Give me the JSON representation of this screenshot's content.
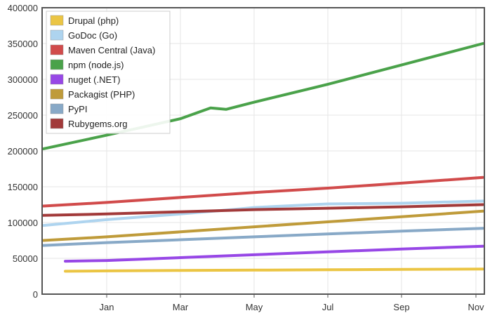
{
  "chart_data": {
    "type": "line",
    "title": "",
    "xlabel": "",
    "ylabel": "",
    "ylim": [
      0,
      400000
    ],
    "y_ticks": [
      0,
      50000,
      100000,
      150000,
      200000,
      250000,
      300000,
      350000,
      400000
    ],
    "y_tick_labels": [
      "0",
      "50000",
      "100000",
      "150000",
      "200000",
      "250000",
      "300000",
      "350000",
      "400000"
    ],
    "x_ticks": [
      "Jan",
      "Mar",
      "May",
      "Jul",
      "Sep",
      "Nov"
    ],
    "grid": true,
    "legend_position": "top-left",
    "series": [
      {
        "name": "Drupal (php)",
        "color": "#ebc544",
        "points": [
          [
            "Dec",
            32000
          ],
          [
            "Jan",
            32500
          ],
          [
            "Mar",
            33000
          ],
          [
            "May",
            33500
          ],
          [
            "Jul",
            34000
          ],
          [
            "Sep",
            34500
          ],
          [
            "Nov",
            35000
          ]
        ]
      },
      {
        "name": "GoDoc (Go)",
        "color": "#aed4ef",
        "points": [
          [
            "Nov",
            96000
          ],
          [
            "Jan",
            104000
          ],
          [
            "Mar",
            112000
          ],
          [
            "Apr",
            118000
          ],
          [
            "May",
            121000
          ],
          [
            "Jul",
            126000
          ],
          [
            "Sep",
            127000
          ],
          [
            "Nov",
            130000
          ]
        ]
      },
      {
        "name": "Maven Central (Java)",
        "color": "#d14b4b",
        "points": [
          [
            "Nov",
            123000
          ],
          [
            "Jan",
            128000
          ],
          [
            "Mar",
            135000
          ],
          [
            "May",
            142000
          ],
          [
            "Jul",
            148000
          ],
          [
            "Sep",
            155000
          ],
          [
            "Nov",
            163000
          ]
        ]
      },
      {
        "name": "npm (node.js)",
        "color": "#4aa24a",
        "points": [
          [
            "Nov",
            203000
          ],
          [
            "Jan",
            222000
          ],
          [
            "Mar",
            245000
          ],
          [
            "Apr",
            260000
          ],
          [
            "Apr",
            258000
          ],
          [
            "May",
            268000
          ],
          [
            "Jul",
            293000
          ],
          [
            "Sep",
            320000
          ],
          [
            "Nov",
            350000
          ]
        ]
      },
      {
        "name": "nuget (.NET)",
        "color": "#9747e6",
        "points": [
          [
            "Dec",
            46000
          ],
          [
            "Jan",
            47000
          ],
          [
            "Mar",
            51000
          ],
          [
            "May",
            55000
          ],
          [
            "Jul",
            59000
          ],
          [
            "Sep",
            63000
          ],
          [
            "Nov",
            67000
          ]
        ]
      },
      {
        "name": "Packagist (PHP)",
        "color": "#bf9b3a",
        "points": [
          [
            "Nov",
            75000
          ],
          [
            "Jan",
            80000
          ],
          [
            "Mar",
            87000
          ],
          [
            "May",
            94000
          ],
          [
            "Jul",
            101000
          ],
          [
            "Sep",
            108000
          ],
          [
            "Nov",
            116000
          ]
        ]
      },
      {
        "name": "PyPI",
        "color": "#88a9c7",
        "points": [
          [
            "Nov",
            68000
          ],
          [
            "Jan",
            72000
          ],
          [
            "Mar",
            76000
          ],
          [
            "May",
            80000
          ],
          [
            "Jul",
            84000
          ],
          [
            "Sep",
            88000
          ],
          [
            "Nov",
            92000
          ]
        ]
      },
      {
        "name": "Rubygems.org",
        "color": "#a23a3a",
        "points": [
          [
            "Nov",
            110000
          ],
          [
            "Jan",
            112000
          ],
          [
            "Mar",
            115000
          ],
          [
            "May",
            118000
          ],
          [
            "Jul",
            120000
          ],
          [
            "Sep",
            122000
          ],
          [
            "Nov",
            125000
          ]
        ]
      }
    ]
  }
}
